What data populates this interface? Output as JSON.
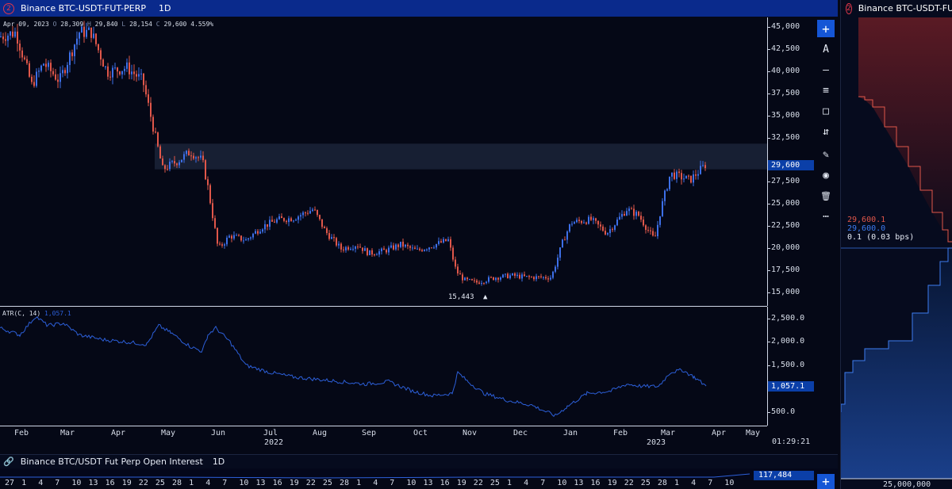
{
  "header": {
    "badge": "2",
    "symbol": "Binance BTC-USDT-FUT-PERP",
    "timeframe": "1D"
  },
  "ohlc": {
    "date": "Apr 09, 2023",
    "o_label": "O",
    "o": "28,309",
    "h_label": "H",
    "h": "29,840",
    "l_label": "L",
    "l": "28,154",
    "c_label": "C",
    "c": "29,600",
    "change": "4.559%"
  },
  "price_axis": {
    "ticks": [
      "45,000",
      "42,500",
      "40,000",
      "37,500",
      "35,000",
      "32,500",
      "27,500",
      "25,000",
      "22,500",
      "20,000",
      "17,500",
      "15,000"
    ],
    "current_price": "29,600"
  },
  "low_marker": {
    "label": "15,443",
    "arrow": "▲"
  },
  "atr": {
    "label": "ATR(C, 14)",
    "value": "1,057.1",
    "ticks": [
      "2,500.0",
      "2,000.0",
      "1,500.0",
      "500.0"
    ],
    "current": "1,057.1"
  },
  "time_axis": {
    "months": [
      "Feb",
      "Mar",
      "Apr",
      "May",
      "Jun",
      "Jul",
      "Aug",
      "Sep",
      "Oct",
      "Nov",
      "Dec",
      "Jan",
      "Feb",
      "Mar",
      "Apr",
      "May"
    ],
    "years": [
      "2022",
      "2023"
    ],
    "clock": "01:29:21"
  },
  "toolbar": {
    "items": [
      {
        "name": "add-button",
        "glyph": "+"
      },
      {
        "name": "text-tool-button",
        "glyph": "A"
      },
      {
        "name": "line-tool-button",
        "glyph": "—"
      },
      {
        "name": "horizontal-lines-button",
        "glyph": "≡"
      },
      {
        "name": "rectangle-tool-button",
        "glyph": "□"
      },
      {
        "name": "measure-tool-button",
        "glyph": "⇵"
      },
      {
        "name": "brush-tool-button",
        "glyph": "✎"
      },
      {
        "name": "visibility-button",
        "glyph": "◉"
      },
      {
        "name": "delete-button",
        "glyph": "🗑"
      },
      {
        "name": "more-button",
        "glyph": "⋯"
      }
    ]
  },
  "open_interest": {
    "link_glyph": "🔗",
    "title": "Binance BTC/USDT Fut Perp Open Interest",
    "timeframe": "1D",
    "value": "117,484",
    "add_glyph": "+"
  },
  "bottom_axis": {
    "days": [
      "27",
      "1",
      "4",
      "7",
      "10",
      "13",
      "16",
      "19",
      "22",
      "25",
      "28",
      "1",
      "4",
      "7",
      "10",
      "13",
      "16",
      "19",
      "22",
      "25",
      "28",
      "1",
      "4",
      "7",
      "10",
      "13",
      "16",
      "19",
      "22",
      "25",
      "1",
      "4",
      "7",
      "10",
      "13",
      "16",
      "19",
      "22",
      "25",
      "28",
      "1",
      "4",
      "7",
      "10"
    ]
  },
  "depth": {
    "badge": "2",
    "symbol": "Binance BTC-USDT-FUT",
    "ask_price": "29,600.1",
    "bid_price": "29,600.0",
    "spread": "0.1 (0.03 bps)",
    "axis_label": "25,000,000"
  },
  "colors": {
    "up": "#3d6fe8",
    "down": "#e0574a",
    "atr_line": "#2c5fd9",
    "zone": "#1a2236",
    "header_bg": "#0a2a8c",
    "price_tag": "#0b3fa8"
  },
  "chart_data": {
    "type": "candlestick",
    "price_range": [
      14000,
      46000
    ],
    "x": [
      "Feb",
      "Mar",
      "Apr",
      "May",
      "Jun",
      "Jul",
      "Aug",
      "Sep",
      "Oct",
      "Nov",
      "Dec",
      "Jan",
      "Feb",
      "Mar",
      "Apr"
    ],
    "close": [
      38500,
      44500,
      40000,
      30000,
      19800,
      23000,
      23300,
      19500,
      20400,
      16500,
      16600,
      23000,
      23500,
      28000,
      29600
    ],
    "atr": [
      2400,
      1900,
      2100,
      2200,
      2000,
      1500,
      1350,
      1100,
      850,
      700,
      350,
      850,
      950,
      1400,
      1057.1
    ],
    "zone": [
      29000,
      31900
    ]
  }
}
